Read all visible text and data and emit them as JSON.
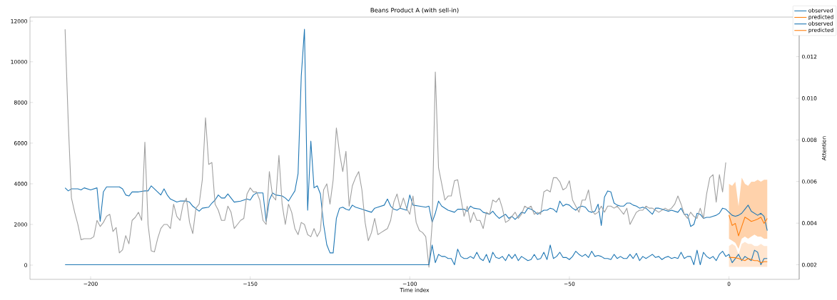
{
  "chart_data": {
    "type": "line",
    "title": "Beans Product A (with sell-in)",
    "xlabel": "Time index",
    "y2label": "Attention",
    "xlim": [
      -219,
      22
    ],
    "xticks": [
      {
        "value": -200,
        "label": "−200"
      },
      {
        "value": -150,
        "label": "−150"
      },
      {
        "value": -100,
        "label": "−100"
      },
      {
        "value": -50,
        "label": "−50"
      },
      0
    ],
    "ylim": [
      -700,
      12200
    ],
    "yticks": [
      0,
      2000,
      4000,
      6000,
      8000,
      10000,
      12000
    ],
    "y2lim": [
      0.0013,
      0.0139
    ],
    "y2ticks": [
      {
        "value": 0.002,
        "label": "0.002"
      },
      {
        "value": 0.004,
        "label": "0.004"
      },
      {
        "value": 0.006,
        "label": "0.006"
      },
      {
        "value": 0.008,
        "label": "0.008"
      },
      {
        "value": 0.01,
        "label": "0.010"
      },
      {
        "value": 0.012,
        "label": "0.012"
      }
    ],
    "legend": "top right",
    "series": [
      {
        "name": "observed",
        "color": "#1f77b4",
        "x": [
          -208,
          -207,
          -206,
          -204,
          -203,
          -202,
          -200,
          -198,
          -197,
          -196,
          -195,
          -193,
          -191,
          -190,
          -189,
          -188,
          -187,
          -185,
          -183,
          -182,
          -181,
          -180,
          -179,
          -178,
          -177,
          -176,
          -175,
          -173,
          -172,
          -170,
          -169,
          -168,
          -166,
          -165,
          -163,
          -162,
          -161,
          -160,
          -159,
          -158,
          -157,
          -156,
          -155,
          -153,
          -151,
          -150,
          -149,
          -148,
          -146,
          -145,
          -144,
          -143,
          -142,
          -140,
          -139,
          -138,
          -137,
          -136,
          -135,
          -134,
          -133,
          -132,
          -131,
          -130,
          -129,
          -128,
          -127,
          -126,
          -125,
          -124,
          -123,
          -122,
          -121,
          -120,
          -119,
          -118,
          -117,
          -115,
          -113,
          -112,
          -111,
          -110,
          -108,
          -107,
          -106,
          -105,
          -104,
          -103,
          -101,
          -100,
          -99,
          -97,
          -95,
          -94,
          -93,
          -92,
          -91,
          -90,
          -88,
          -86,
          -85,
          -83,
          -82,
          -81,
          -80,
          -78,
          -77,
          -76,
          -75,
          -74,
          -73,
          -72,
          -71,
          -70,
          -69,
          -68,
          -67,
          -66,
          -65,
          -64,
          -63,
          -62,
          -61,
          -60,
          -59,
          -58,
          -57,
          -56,
          -55,
          -54,
          -53,
          -52,
          -51,
          -50,
          -49,
          -48,
          -47,
          -46,
          -45,
          -44,
          -43,
          -42,
          -41,
          -40,
          -39,
          -38,
          -37,
          -36,
          -35,
          -34,
          -33,
          -32,
          -31,
          -30,
          -29,
          -28,
          -27,
          -26,
          -25,
          -24,
          -23,
          -22,
          -21,
          -20,
          -19,
          -18,
          -17,
          -16,
          -15,
          -14,
          -13,
          -12,
          -11,
          -10,
          -9,
          -8,
          -7,
          -6,
          -5,
          -4,
          -3,
          -2,
          -1,
          0,
          1,
          2,
          3,
          4,
          5,
          6,
          7,
          8,
          9,
          10,
          11,
          12
        ],
        "values": [
          3800,
          3650,
          3750,
          3750,
          3700,
          3800,
          3700,
          3800,
          2150,
          3600,
          3850,
          3850,
          3850,
          3750,
          3450,
          3400,
          3600,
          3600,
          3650,
          3650,
          3900,
          3750,
          3600,
          3450,
          3750,
          3450,
          3250,
          3100,
          3150,
          3150,
          3100,
          2900,
          2650,
          2800,
          2850,
          3050,
          3200,
          3450,
          3300,
          3300,
          3500,
          3300,
          3100,
          3150,
          3250,
          3200,
          3450,
          3550,
          3550,
          2150,
          3200,
          3550,
          3450,
          3400,
          3300,
          3150,
          3400,
          3650,
          4500,
          9300,
          11600,
          2700,
          6100,
          3800,
          3900,
          3500,
          2000,
          1000,
          600,
          600,
          2300,
          2800,
          2850,
          2750,
          2700,
          2950,
          2850,
          2750,
          2650,
          2600,
          2800,
          2850,
          2950,
          3250,
          2900,
          2750,
          2700,
          2800,
          2700,
          3450,
          2950,
          2900,
          2850,
          2900,
          2100,
          2550,
          3150,
          2900,
          2700,
          2600,
          2750,
          2750,
          2650,
          2900,
          2800,
          2750,
          2600,
          2550,
          2500,
          2650,
          2450,
          2300,
          2400,
          2500,
          2300,
          2400,
          2250,
          2400,
          2600,
          2550,
          2800,
          2750,
          2650,
          2500,
          2600,
          2700,
          2700,
          2800,
          2750,
          2600,
          3150,
          2900,
          3000,
          2950,
          2800,
          2700,
          2850,
          2900,
          2850,
          2650,
          2600,
          2650,
          3000,
          1950,
          3350,
          3650,
          3600,
          3050,
          2950,
          2900,
          2900,
          3050,
          3050,
          2950,
          2900,
          2800,
          2850,
          2800,
          2650,
          2500,
          2800,
          2800,
          2750,
          2700,
          2650,
          2700,
          2650,
          2600,
          2800,
          2500,
          2500,
          1900,
          2000,
          2550,
          2500,
          2300,
          2350,
          2350,
          2400,
          2450,
          2550,
          2800,
          2750,
          2600,
          2450,
          2400,
          2450,
          2550,
          2750,
          2950,
          2650,
          2550,
          2450,
          2550,
          2400,
          1700
        ]
      },
      {
        "name": "predicted",
        "color": "#ff7f0e",
        "x": [
          0,
          1,
          2,
          3,
          4,
          5,
          6,
          7,
          8,
          9,
          10,
          11,
          12
        ],
        "values": [
          2460,
          1950,
          2050,
          1440,
          1900,
          2360,
          2260,
          2150,
          2200,
          2260,
          2360,
          2050,
          2300
        ],
        "lower": [
          1300,
          1200,
          1100,
          800,
          1300,
          1400,
          1300,
          1400,
          1500,
          1400,
          1400,
          1300,
          1300
        ],
        "upper": [
          4000,
          3900,
          4100,
          2900,
          4300,
          4000,
          3900,
          4100,
          4100,
          4200,
          4100,
          4200,
          4200
        ]
      },
      {
        "name": "observed",
        "color": "#1f77b4",
        "axis": "y2",
        "x": [
          -208,
          -95,
          -94,
          -93,
          -92,
          -91,
          -90,
          -89,
          -88,
          -87,
          -86,
          -85,
          -84,
          -83,
          -82,
          -81,
          -80,
          -79,
          -78,
          -77,
          -76,
          -75,
          -74,
          -73,
          -72,
          -71,
          -70,
          -69,
          -68,
          -67,
          -66,
          -65,
          -64,
          -63,
          -62,
          -61,
          -60,
          -59,
          -58,
          -57,
          -56,
          -55,
          -54,
          -53,
          -52,
          -51,
          -50,
          -49,
          -48,
          -47,
          -46,
          -45,
          -44,
          -43,
          -42,
          -41,
          -40,
          -39,
          -38,
          -37,
          -36,
          -35,
          -34,
          -33,
          -32,
          -31,
          -30,
          -29,
          -28,
          -27,
          -26,
          -25,
          -24,
          -23,
          -22,
          -21,
          -20,
          -19,
          -18,
          -17,
          -16,
          -15,
          -14,
          -13,
          -12,
          -11,
          -10,
          -9,
          -8,
          -7,
          -6,
          -5,
          -4,
          -3,
          -2,
          -1,
          0,
          1,
          2,
          3,
          4,
          5,
          6,
          7,
          8,
          9,
          10,
          11,
          12
        ],
        "values": [
          0.002,
          0.002,
          0.002,
          0.00295,
          0.0021,
          0.0025,
          0.0024,
          0.0024,
          0.0023,
          0.0023,
          0.002,
          0.00275,
          0.0024,
          0.0023,
          0.0023,
          0.0024,
          0.0023,
          0.0026,
          0.0023,
          0.0022,
          0.0025,
          0.0021,
          0.0026,
          0.00235,
          0.0023,
          0.0024,
          0.0022,
          0.0025,
          0.0023,
          0.0025,
          0.0022,
          0.0024,
          0.0023,
          0.0022,
          0.00225,
          0.0025,
          0.00225,
          0.0023,
          0.0026,
          0.00225,
          0.00295,
          0.0023,
          0.0024,
          0.0026,
          0.00235,
          0.00235,
          0.00225,
          0.0024,
          0.00265,
          0.0025,
          0.0024,
          0.0025,
          0.00235,
          0.00265,
          0.0024,
          0.00245,
          0.0024,
          0.0023,
          0.0023,
          0.00225,
          0.0025,
          0.0023,
          0.0024,
          0.0023,
          0.0023,
          0.0025,
          0.0023,
          0.00255,
          0.0022,
          0.0024,
          0.0023,
          0.0024,
          0.0025,
          0.00235,
          0.0024,
          0.00225,
          0.00235,
          0.0024,
          0.0023,
          0.00235,
          0.0023,
          0.0026,
          0.0023,
          0.0024,
          0.0024,
          0.002,
          0.0027,
          0.002,
          0.0026,
          0.0024,
          0.0023,
          0.0024,
          0.0022,
          0.0025,
          0.00265,
          0.0024,
          0.0025,
          0.0021,
          0.0023,
          0.0025,
          0.0022,
          0.0024,
          0.0023,
          0.0022,
          0.0027,
          0.0026,
          0.002,
          0.0023,
          0.0023
        ]
      },
      {
        "name": "predicted",
        "color": "#ff7f0e",
        "axis": "y2",
        "x": [
          0,
          1,
          2,
          3,
          4,
          5,
          6,
          7,
          8,
          9,
          10,
          11,
          12
        ],
        "values": [
          0.00235,
          0.00235,
          0.00234,
          0.0023,
          0.00225,
          0.0022,
          0.0023,
          0.00225,
          0.0022,
          0.0022,
          0.0021,
          0.00215,
          0.00215
        ],
        "lower": [
          0.0019,
          0.0019,
          0.0019,
          0.0019,
          0.0019,
          0.0019,
          0.0019,
          0.0019,
          0.0019,
          0.0019,
          0.0019,
          0.0019,
          0.0019
        ],
        "upper": [
          0.0029,
          0.003,
          0.0029,
          0.0025,
          0.003,
          0.0031,
          0.003,
          0.003,
          0.0029,
          0.0029,
          0.003,
          0.0029,
          0.0029
        ]
      },
      {
        "color": "#a0a0a0",
        "x": [
          -208,
          -207,
          -206,
          -205,
          -204,
          -203,
          -202,
          -201,
          -200,
          -199,
          -198,
          -197,
          -196,
          -195,
          -194,
          -193,
          -192,
          -191,
          -190,
          -189,
          -188,
          -187,
          -186,
          -185,
          -184,
          -183,
          -182,
          -181,
          -180,
          -179,
          -178,
          -177,
          -176,
          -175,
          -174,
          -173,
          -172,
          -171,
          -170,
          -169,
          -168,
          -167,
          -166,
          -165,
          -164,
          -163,
          -162,
          -161,
          -160,
          -159,
          -158,
          -157,
          -156,
          -155,
          -154,
          -153,
          -152,
          -151,
          -150,
          -149,
          -148,
          -147,
          -146,
          -145,
          -144,
          -143,
          -142,
          -141,
          -140,
          -139,
          -138,
          -137,
          -136,
          -135,
          -134,
          -133,
          -132,
          -131,
          -130,
          -129,
          -128,
          -127,
          -126,
          -125,
          -124,
          -123,
          -122,
          -121,
          -120,
          -119,
          -118,
          -117,
          -116,
          -115,
          -114,
          -113,
          -112,
          -111,
          -110,
          -109,
          -108,
          -107,
          -106,
          -105,
          -104,
          -103,
          -102,
          -101,
          -100,
          -99,
          -98,
          -97,
          -96,
          -95,
          -94,
          -93,
          -92,
          -91,
          -90,
          -89,
          -88,
          -87,
          -86,
          -85,
          -84,
          -83,
          -82,
          -81,
          -80,
          -79,
          -78,
          -77,
          -76,
          -75,
          -74,
          -73,
          -72,
          -71,
          -70,
          -69,
          -68,
          -67,
          -66,
          -65,
          -64,
          -63,
          -62,
          -61,
          -60,
          -59,
          -58,
          -57,
          -56,
          -55,
          -54,
          -53,
          -52,
          -51,
          -50,
          -49,
          -48,
          -47,
          -46,
          -45,
          -44,
          -43,
          -42,
          -41,
          -40,
          -39,
          -38,
          -37,
          -36,
          -35,
          -34,
          -33,
          -32,
          -31,
          -30,
          -29,
          -28,
          -27,
          -26,
          -25,
          -24,
          -23,
          -22,
          -21,
          -20,
          -19,
          -18,
          -17,
          -16,
          -15,
          -14,
          -13,
          -12,
          -11,
          -10,
          -9,
          -8,
          -7,
          -6,
          -5,
          -4,
          -3,
          -2,
          -1
        ],
        "values": [
          11600,
          7000,
          3300,
          2600,
          2000,
          1250,
          1300,
          1300,
          1300,
          1400,
          2200,
          1900,
          2100,
          2400,
          2500,
          1650,
          1850,
          600,
          750,
          1450,
          1050,
          2200,
          2350,
          2600,
          2200,
          6050,
          2000,
          700,
          650,
          1300,
          1800,
          2000,
          2000,
          1800,
          3000,
          2400,
          2200,
          3000,
          3300,
          2100,
          1550,
          2800,
          3000,
          4200,
          7250,
          4950,
          5050,
          3000,
          2700,
          2200,
          2200,
          2900,
          2600,
          1800,
          2000,
          2200,
          2300,
          3500,
          3800,
          3600,
          3600,
          3200,
          2200,
          2000,
          4600,
          3400,
          3200,
          5400,
          3000,
          2000,
          3000,
          2600,
          1800,
          1500,
          2100,
          2000,
          1500,
          1400,
          1800,
          1400,
          1700,
          3700,
          4000,
          3000,
          4200,
          6750,
          5500,
          4600,
          5600,
          2900,
          3900,
          4300,
          4600,
          3700,
          2100,
          1200,
          1600,
          2300,
          1500,
          1600,
          1700,
          1800,
          2200,
          3100,
          3500,
          2800,
          3300,
          2800,
          2500,
          3400,
          2100,
          1700,
          1600,
          1400,
          -100,
          2000,
          9500,
          4800,
          4000,
          3200,
          3400,
          3400,
          4150,
          4200,
          3300,
          2400,
          2900,
          2100,
          2600,
          2200,
          2200,
          1800,
          2600,
          2500,
          3200,
          3100,
          3300,
          2800,
          2100,
          2200,
          2400,
          2600,
          2300,
          2500,
          2900,
          2800,
          2900,
          2500,
          2600,
          2500,
          3600,
          3700,
          3600,
          4300,
          4300,
          4100,
          3700,
          3800,
          4150,
          3200,
          2900,
          2600,
          3200,
          3200,
          3700,
          2700,
          2500,
          2600,
          2900,
          2600,
          2900,
          2900,
          2800,
          2900,
          2700,
          2500,
          2800,
          2000,
          2300,
          2600,
          2700,
          2700,
          2900,
          2800,
          2800,
          2700,
          2600,
          2700,
          2800,
          2700,
          2800,
          3000,
          3400,
          3000,
          2500,
          2300,
          2600,
          2400,
          2300,
          2800,
          2300,
          3500,
          4300,
          4450,
          3100,
          4450,
          3600,
          5050
        ]
      }
    ]
  }
}
